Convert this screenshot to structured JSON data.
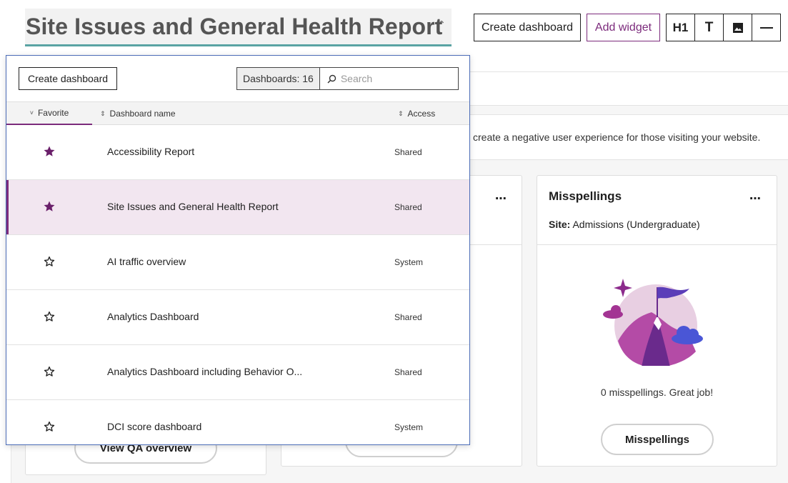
{
  "header": {
    "title": "Site Issues and General Health Report",
    "create_dashboard": "Create dashboard",
    "add_widget": "Add widget",
    "tools": {
      "h1": "H1",
      "text": "T"
    }
  },
  "background": {
    "description_fragment": "create a negative user experience for those visiting your website.",
    "left_card_button": "View QA overview",
    "misspellings_card": {
      "title": "Misspellings",
      "site_label": "Site:",
      "site_value": "Admissions (Undergraduate)",
      "empty_message": "0 misspellings. Great job!",
      "button": "Misspellings"
    }
  },
  "dropdown": {
    "create_button": "Create dashboard",
    "count_label": "Dashboards: 16",
    "search_placeholder": "Search",
    "columns": {
      "favorite": "Favorite",
      "name": "Dashboard name",
      "access": "Access"
    },
    "rows": [
      {
        "name": "Accessibility Report",
        "access": "Shared",
        "favorite": true,
        "selected": false
      },
      {
        "name": "Site Issues and General Health Report",
        "access": "Shared",
        "favorite": true,
        "selected": true
      },
      {
        "name": "AI traffic overview",
        "access": "System",
        "favorite": false,
        "selected": false
      },
      {
        "name": "Analytics Dashboard",
        "access": "Shared",
        "favorite": false,
        "selected": false
      },
      {
        "name": "Analytics Dashboard including Behavior O...",
        "access": "Shared",
        "favorite": false,
        "selected": false
      },
      {
        "name": "DCI score dashboard",
        "access": "System",
        "favorite": false,
        "selected": false
      }
    ]
  },
  "colors": {
    "accent": "#7c2b7c",
    "title_underline": "#5aa3a3",
    "panel_border": "#4b6cb7",
    "selected_row": "#f2e6f0"
  },
  "icons": {
    "title_caret": "chevron-up-icon",
    "image_tool": "image-icon",
    "divider_tool": "horizontal-rule-icon",
    "search": "search-icon",
    "favorite_on": "star-filled-icon",
    "favorite_off": "star-outline-icon",
    "card_menu": "more-options-icon"
  }
}
